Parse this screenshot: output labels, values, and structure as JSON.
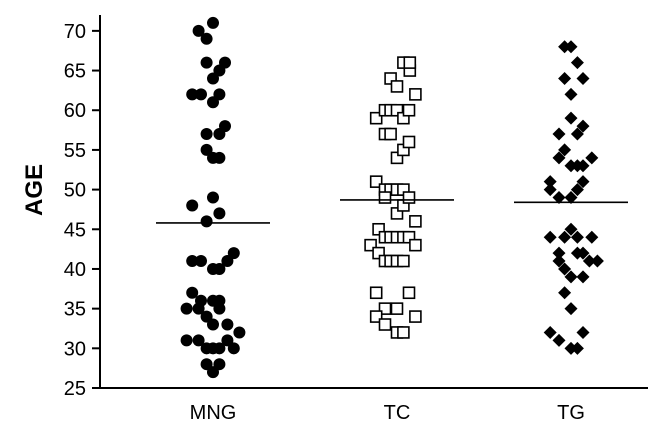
{
  "chart_data": {
    "type": "scatter",
    "title": "",
    "xlabel": "",
    "ylabel": "AGE",
    "ylim": [
      25,
      72
    ],
    "yticks": [
      25,
      30,
      35,
      40,
      45,
      50,
      55,
      60,
      65,
      70
    ],
    "categories": [
      "MNG",
      "TC",
      "TG"
    ],
    "grid": false,
    "legend": "none",
    "series": [
      {
        "category": "MNG",
        "marker": "filled-circle",
        "color": "#000000",
        "mean": 45.8,
        "points": [
          [
            -0.18,
            70
          ],
          [
            -0.08,
            69
          ],
          [
            0.0,
            71
          ],
          [
            -0.08,
            66
          ],
          [
            0.0,
            64
          ],
          [
            0.15,
            66
          ],
          [
            0.08,
            65
          ],
          [
            -0.26,
            62
          ],
          [
            -0.15,
            62
          ],
          [
            0.0,
            61
          ],
          [
            0.08,
            62
          ],
          [
            -0.08,
            57
          ],
          [
            0.08,
            57
          ],
          [
            0.15,
            58
          ],
          [
            -0.08,
            55
          ],
          [
            0.0,
            54
          ],
          [
            0.08,
            54
          ],
          [
            -0.26,
            48
          ],
          [
            -0.08,
            46
          ],
          [
            0.0,
            49
          ],
          [
            0.08,
            47
          ],
          [
            -0.26,
            41
          ],
          [
            -0.15,
            41
          ],
          [
            0.0,
            40
          ],
          [
            0.08,
            40
          ],
          [
            0.18,
            41
          ],
          [
            0.26,
            42
          ],
          [
            -0.26,
            37
          ],
          [
            -0.15,
            36
          ],
          [
            0.0,
            36
          ],
          [
            0.08,
            36
          ],
          [
            -0.33,
            35
          ],
          [
            -0.18,
            35
          ],
          [
            -0.08,
            34
          ],
          [
            0.0,
            33
          ],
          [
            0.08,
            35
          ],
          [
            0.18,
            33
          ],
          [
            0.33,
            32
          ],
          [
            -0.33,
            31
          ],
          [
            -0.18,
            31
          ],
          [
            -0.08,
            30
          ],
          [
            0.0,
            30
          ],
          [
            0.08,
            30
          ],
          [
            0.18,
            31
          ],
          [
            0.26,
            30
          ],
          [
            -0.08,
            28
          ],
          [
            0.0,
            27
          ],
          [
            0.08,
            28
          ]
        ]
      },
      {
        "category": "TC",
        "marker": "open-square",
        "color": "#000000",
        "mean": 48.7,
        "points": [
          [
            -0.08,
            64
          ],
          [
            0.0,
            63
          ],
          [
            0.08,
            66
          ],
          [
            0.16,
            65
          ],
          [
            0.16,
            66
          ],
          [
            0.23,
            62
          ],
          [
            -0.26,
            59
          ],
          [
            -0.15,
            60
          ],
          [
            -0.08,
            60
          ],
          [
            0.0,
            60
          ],
          [
            0.08,
            59
          ],
          [
            0.15,
            60
          ],
          [
            -0.15,
            57
          ],
          [
            -0.08,
            57
          ],
          [
            0.0,
            54
          ],
          [
            0.08,
            55
          ],
          [
            0.15,
            56
          ],
          [
            -0.26,
            51
          ],
          [
            -0.15,
            50
          ],
          [
            -0.08,
            50
          ],
          [
            0.0,
            50
          ],
          [
            0.08,
            50
          ],
          [
            -0.15,
            49
          ],
          [
            0.0,
            47
          ],
          [
            0.08,
            48
          ],
          [
            0.15,
            49
          ],
          [
            0.23,
            46
          ],
          [
            -0.33,
            43
          ],
          [
            -0.23,
            45
          ],
          [
            -0.15,
            44
          ],
          [
            -0.08,
            44
          ],
          [
            0.0,
            44
          ],
          [
            0.08,
            44
          ],
          [
            0.15,
            44
          ],
          [
            0.23,
            43
          ],
          [
            -0.23,
            42
          ],
          [
            -0.15,
            41
          ],
          [
            -0.08,
            41
          ],
          [
            0.0,
            41
          ],
          [
            0.08,
            41
          ],
          [
            -0.26,
            37
          ],
          [
            -0.15,
            35
          ],
          [
            0.0,
            35
          ],
          [
            0.15,
            37
          ],
          [
            -0.26,
            34
          ],
          [
            -0.15,
            33
          ],
          [
            0.0,
            32
          ],
          [
            0.08,
            32
          ],
          [
            0.23,
            34
          ]
        ]
      },
      {
        "category": "TG",
        "marker": "filled-diamond",
        "color": "#000000",
        "mean": 48.4,
        "points": [
          [
            -0.08,
            68
          ],
          [
            0.0,
            68
          ],
          [
            -0.08,
            64
          ],
          [
            0.0,
            62
          ],
          [
            0.08,
            66
          ],
          [
            0.15,
            64
          ],
          [
            -0.15,
            57
          ],
          [
            0.0,
            59
          ],
          [
            0.08,
            57
          ],
          [
            0.15,
            58
          ],
          [
            -0.26,
            51
          ],
          [
            -0.15,
            54
          ],
          [
            -0.08,
            55
          ],
          [
            0.0,
            53
          ],
          [
            0.08,
            53
          ],
          [
            0.15,
            53
          ],
          [
            0.26,
            54
          ],
          [
            -0.26,
            50
          ],
          [
            -0.15,
            49
          ],
          [
            0.0,
            49
          ],
          [
            0.08,
            50
          ],
          [
            0.15,
            51
          ],
          [
            -0.26,
            44
          ],
          [
            -0.15,
            42
          ],
          [
            -0.08,
            44
          ],
          [
            0.0,
            45
          ],
          [
            0.08,
            44
          ],
          [
            0.15,
            42
          ],
          [
            0.26,
            44
          ],
          [
            -0.15,
            41
          ],
          [
            -0.08,
            40
          ],
          [
            0.0,
            39
          ],
          [
            0.08,
            42
          ],
          [
            0.15,
            39
          ],
          [
            0.23,
            41
          ],
          [
            0.33,
            41
          ],
          [
            -0.08,
            37
          ],
          [
            0.0,
            35
          ],
          [
            -0.26,
            32
          ],
          [
            -0.15,
            31
          ],
          [
            0.0,
            30
          ],
          [
            0.08,
            30
          ],
          [
            0.15,
            32
          ]
        ]
      }
    ]
  }
}
